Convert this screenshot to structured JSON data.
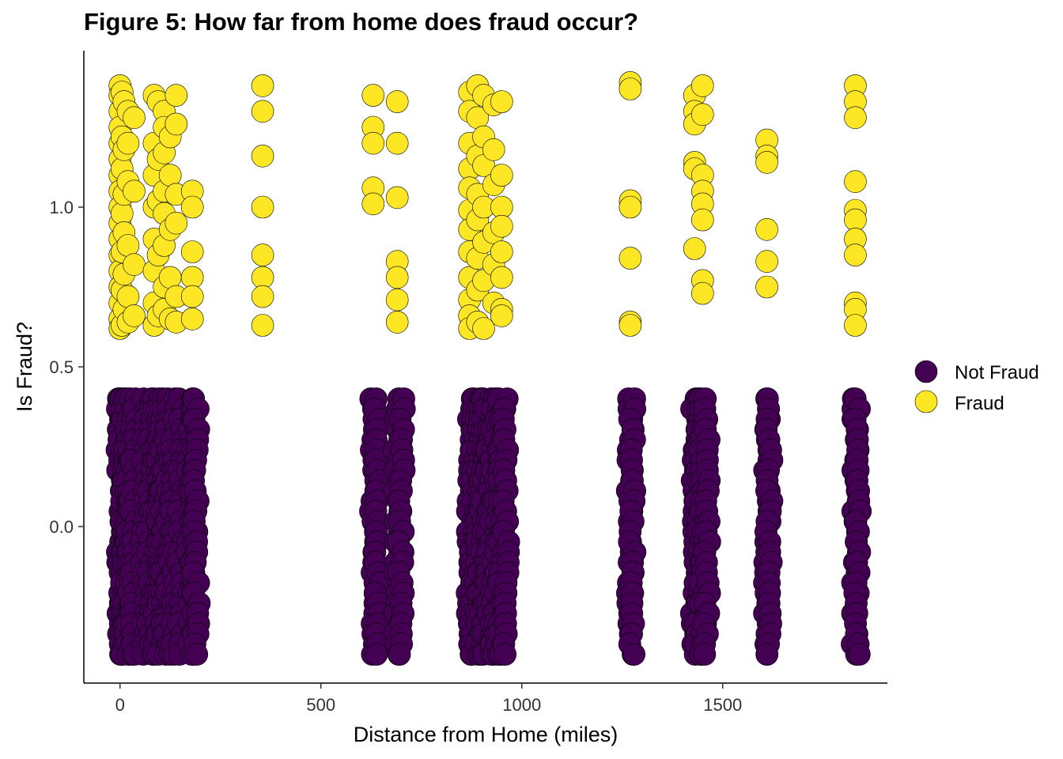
{
  "chart_data": {
    "type": "scatter",
    "title": "Figure 5: How far from home does fraud occur?",
    "xlabel": "Distance from Home (miles)",
    "ylabel": "Is Fraud?",
    "xlim": [
      -90,
      1910
    ],
    "ylim": [
      -0.49,
      1.49
    ],
    "x_ticks": [
      0,
      500,
      1000,
      1500
    ],
    "x_tick_labels": [
      "0",
      "500",
      "1000",
      "1500"
    ],
    "y_ticks": [
      0.0,
      0.5,
      1.0
    ],
    "y_tick_labels": [
      "0.0",
      "0.5",
      "1.0"
    ],
    "grid": false,
    "legend_position": "right",
    "series": [
      {
        "name": "Not Fraud",
        "color": "#440154",
        "y_center": 0,
        "jitter": 0.4,
        "x_clusters": [
          0,
          5,
          10,
          15,
          20,
          25,
          35,
          60,
          75,
          90,
          100,
          110,
          120,
          135,
          150,
          175,
          185,
          190,
          630,
          640,
          690,
          700,
          870,
          880,
          890,
          900,
          910,
          920,
          930,
          940,
          950,
          960,
          1270,
          1275,
          1430,
          1440,
          1450,
          1460,
          1610,
          1615,
          1830,
          1835
        ]
      },
      {
        "name": "Fraud",
        "color": "#FDE725",
        "points": [
          [
            0,
            1.38
          ],
          [
            0,
            1.35
          ],
          [
            0,
            1.3
          ],
          [
            0,
            1.25
          ],
          [
            0,
            1.2
          ],
          [
            0,
            1.15
          ],
          [
            0,
            1.1
          ],
          [
            0,
            1.05
          ],
          [
            0,
            1.0
          ],
          [
            0,
            0.95
          ],
          [
            0,
            0.9
          ],
          [
            0,
            0.85
          ],
          [
            0,
            0.8
          ],
          [
            0,
            0.75
          ],
          [
            0,
            0.7
          ],
          [
            0,
            0.65
          ],
          [
            0,
            0.62
          ],
          [
            5,
            1.36
          ],
          [
            5,
            1.22
          ],
          [
            5,
            1.12
          ],
          [
            5,
            0.98
          ],
          [
            5,
            0.86
          ],
          [
            5,
            0.74
          ],
          [
            5,
            0.63
          ],
          [
            10,
            1.33
          ],
          [
            10,
            1.18
          ],
          [
            10,
            1.04
          ],
          [
            10,
            0.92
          ],
          [
            10,
            0.79
          ],
          [
            10,
            0.68
          ],
          [
            20,
            1.3
          ],
          [
            20,
            1.2
          ],
          [
            20,
            1.08
          ],
          [
            20,
            0.88
          ],
          [
            20,
            0.72
          ],
          [
            20,
            0.64
          ],
          [
            35,
            1.28
          ],
          [
            35,
            1.05
          ],
          [
            35,
            0.82
          ],
          [
            35,
            0.66
          ],
          [
            85,
            1.35
          ],
          [
            85,
            1.2
          ],
          [
            85,
            1.1
          ],
          [
            85,
            1.0
          ],
          [
            85,
            0.9
          ],
          [
            85,
            0.8
          ],
          [
            85,
            0.7
          ],
          [
            85,
            0.63
          ],
          [
            95,
            1.33
          ],
          [
            95,
            1.15
          ],
          [
            95,
            1.02
          ],
          [
            95,
            0.85
          ],
          [
            95,
            0.66
          ],
          [
            110,
            1.3
          ],
          [
            110,
            1.25
          ],
          [
            110,
            1.17
          ],
          [
            110,
            1.05
          ],
          [
            110,
            0.98
          ],
          [
            110,
            0.88
          ],
          [
            110,
            0.75
          ],
          [
            110,
            0.68
          ],
          [
            125,
            1.22
          ],
          [
            125,
            1.1
          ],
          [
            125,
            0.93
          ],
          [
            125,
            0.78
          ],
          [
            125,
            0.65
          ],
          [
            140,
            1.35
          ],
          [
            140,
            1.26
          ],
          [
            140,
            1.04
          ],
          [
            140,
            0.95
          ],
          [
            140,
            0.72
          ],
          [
            140,
            0.64
          ],
          [
            180,
            1.05
          ],
          [
            180,
            1.0
          ],
          [
            180,
            0.86
          ],
          [
            180,
            0.78
          ],
          [
            180,
            0.72
          ],
          [
            180,
            0.65
          ],
          [
            355,
            1.38
          ],
          [
            355,
            1.3
          ],
          [
            355,
            1.16
          ],
          [
            355,
            1.0
          ],
          [
            355,
            0.85
          ],
          [
            355,
            0.78
          ],
          [
            355,
            0.72
          ],
          [
            355,
            0.63
          ],
          [
            630,
            1.35
          ],
          [
            630,
            1.25
          ],
          [
            630,
            1.2
          ],
          [
            630,
            1.06
          ],
          [
            630,
            1.01
          ],
          [
            690,
            1.33
          ],
          [
            690,
            1.2
          ],
          [
            690,
            1.03
          ],
          [
            690,
            0.83
          ],
          [
            690,
            0.78
          ],
          [
            690,
            0.71
          ],
          [
            690,
            0.64
          ],
          [
            870,
            1.36
          ],
          [
            870,
            1.3
          ],
          [
            870,
            1.2
          ],
          [
            870,
            1.12
          ],
          [
            870,
            1.06
          ],
          [
            870,
            0.99
          ],
          [
            870,
            0.93
          ],
          [
            870,
            0.86
          ],
          [
            870,
            0.78
          ],
          [
            870,
            0.71
          ],
          [
            870,
            0.66
          ],
          [
            870,
            0.62
          ],
          [
            890,
            1.38
          ],
          [
            890,
            1.28
          ],
          [
            890,
            1.16
          ],
          [
            890,
            1.04
          ],
          [
            890,
            0.96
          ],
          [
            890,
            0.84
          ],
          [
            890,
            0.74
          ],
          [
            890,
            0.64
          ],
          [
            905,
            1.35
          ],
          [
            905,
            1.22
          ],
          [
            905,
            1.13
          ],
          [
            905,
            1.0
          ],
          [
            905,
            0.89
          ],
          [
            905,
            0.77
          ],
          [
            905,
            0.62
          ],
          [
            930,
            1.32
          ],
          [
            930,
            1.18
          ],
          [
            930,
            1.07
          ],
          [
            930,
            0.92
          ],
          [
            930,
            0.82
          ],
          [
            930,
            0.7
          ],
          [
            950,
            1.33
          ],
          [
            950,
            1.1
          ],
          [
            950,
            1.0
          ],
          [
            950,
            0.94
          ],
          [
            950,
            0.86
          ],
          [
            950,
            0.78
          ],
          [
            950,
            0.68
          ],
          [
            950,
            0.66
          ],
          [
            1270,
            1.39
          ],
          [
            1270,
            1.37
          ],
          [
            1270,
            1.02
          ],
          [
            1270,
            1.0
          ],
          [
            1270,
            0.84
          ],
          [
            1270,
            0.64
          ],
          [
            1270,
            0.63
          ],
          [
            1430,
            1.35
          ],
          [
            1430,
            1.3
          ],
          [
            1430,
            1.26
          ],
          [
            1430,
            1.14
          ],
          [
            1430,
            1.12
          ],
          [
            1430,
            0.87
          ],
          [
            1450,
            1.38
          ],
          [
            1450,
            1.29
          ],
          [
            1450,
            1.1
          ],
          [
            1450,
            1.05
          ],
          [
            1450,
            1.01
          ],
          [
            1450,
            0.96
          ],
          [
            1450,
            0.77
          ],
          [
            1450,
            0.73
          ],
          [
            1610,
            1.21
          ],
          [
            1610,
            1.16
          ],
          [
            1610,
            1.14
          ],
          [
            1610,
            0.93
          ],
          [
            1610,
            0.83
          ],
          [
            1610,
            0.75
          ],
          [
            1830,
            1.38
          ],
          [
            1830,
            1.33
          ],
          [
            1830,
            1.28
          ],
          [
            1830,
            1.08
          ],
          [
            1830,
            0.99
          ],
          [
            1830,
            0.96
          ],
          [
            1830,
            0.9
          ],
          [
            1830,
            0.85
          ],
          [
            1830,
            0.7
          ],
          [
            1830,
            0.68
          ],
          [
            1830,
            0.63
          ]
        ]
      }
    ]
  }
}
